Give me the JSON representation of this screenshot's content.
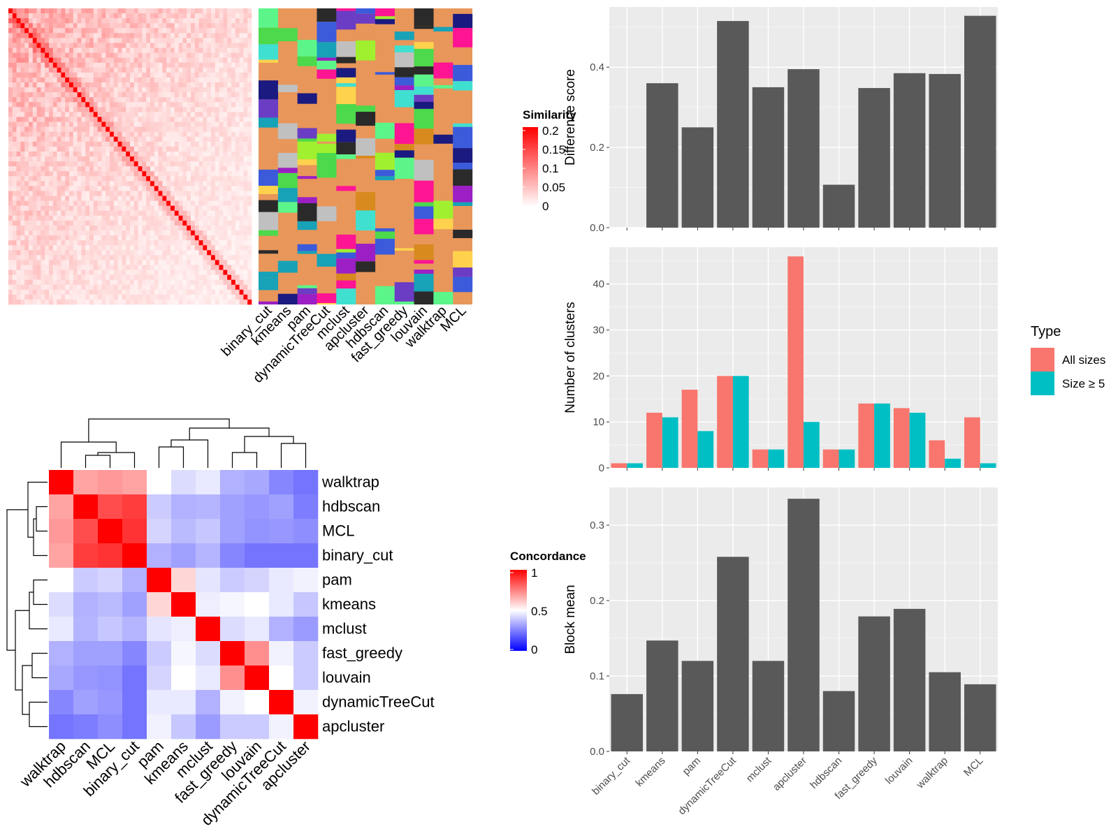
{
  "methods_order": [
    "binary_cut",
    "kmeans",
    "pam",
    "dynamicTreeCut",
    "mclust",
    "apcluster",
    "hdbscan",
    "fast_greedy",
    "louvain",
    "walktrap",
    "MCL"
  ],
  "colors": {
    "bar_fill": "#595959",
    "panel_bg": "#ebebeb",
    "grid": "#ffffff",
    "all_sizes": "#f8766d",
    "size_ge5": "#00bfc4",
    "heat_high": "#ff0000",
    "heat_mid": "#ffffff",
    "heat_low": "#0000ff",
    "annotation_base": "#e8965a"
  },
  "legends": {
    "similarity": {
      "title": "Similarity",
      "ticks": [
        "0.2",
        "0.15",
        "0.1",
        "0.05",
        "0"
      ]
    },
    "concordance": {
      "title": "Concordance",
      "ticks": [
        "1",
        "0.5",
        "0"
      ]
    },
    "type": {
      "title": "Type",
      "items": [
        "All sizes",
        "Size ≥ 5"
      ]
    }
  },
  "chart_data": [
    {
      "type": "heatmap",
      "name": "similarity-matrix-with-cluster-annotations",
      "annotation_columns": [
        "binary_cut",
        "kmeans",
        "pam",
        "dynamicTreeCut",
        "mclust",
        "apcluster",
        "hdbscan",
        "fast_greedy",
        "louvain",
        "walktrap",
        "MCL"
      ],
      "legend_title": "Similarity",
      "range": [
        0,
        0.2
      ]
    },
    {
      "type": "heatmap",
      "name": "concordance",
      "rows": [
        "walktrap",
        "hdbscan",
        "MCL",
        "binary_cut",
        "pam",
        "kmeans",
        "mclust",
        "fast_greedy",
        "louvain",
        "dynamicTreeCut",
        "apcluster"
      ],
      "columns": [
        "walktrap",
        "hdbscan",
        "MCL",
        "binary_cut",
        "pam",
        "kmeans",
        "mclust",
        "fast_greedy",
        "louvain",
        "dynamicTreeCut",
        "apcluster"
      ],
      "values": [
        [
          1.0,
          0.68,
          0.7,
          0.68,
          0.5,
          0.42,
          0.45,
          0.32,
          0.3,
          0.22,
          0.18
        ],
        [
          0.68,
          1.0,
          0.85,
          0.88,
          0.38,
          0.32,
          0.33,
          0.28,
          0.26,
          0.28,
          0.2
        ],
        [
          0.7,
          0.85,
          1.0,
          0.9,
          0.4,
          0.34,
          0.37,
          0.28,
          0.25,
          0.26,
          0.24
        ],
        [
          0.68,
          0.88,
          0.9,
          1.0,
          0.32,
          0.28,
          0.33,
          0.22,
          0.18,
          0.18,
          0.18
        ],
        [
          0.5,
          0.38,
          0.4,
          0.32,
          1.0,
          0.58,
          0.44,
          0.38,
          0.4,
          0.45,
          0.47
        ],
        [
          0.42,
          0.32,
          0.34,
          0.28,
          0.58,
          1.0,
          0.46,
          0.48,
          0.5,
          0.45,
          0.37
        ],
        [
          0.45,
          0.33,
          0.37,
          0.33,
          0.44,
          0.46,
          1.0,
          0.42,
          0.45,
          0.32,
          0.27
        ],
        [
          0.32,
          0.28,
          0.28,
          0.22,
          0.38,
          0.48,
          0.42,
          1.0,
          0.72,
          0.47,
          0.38
        ],
        [
          0.3,
          0.26,
          0.25,
          0.18,
          0.4,
          0.5,
          0.45,
          0.72,
          1.0,
          0.5,
          0.38
        ],
        [
          0.22,
          0.28,
          0.26,
          0.18,
          0.45,
          0.45,
          0.32,
          0.47,
          0.5,
          1.0,
          0.47
        ],
        [
          0.18,
          0.2,
          0.24,
          0.18,
          0.47,
          0.37,
          0.27,
          0.38,
          0.38,
          0.47,
          1.0
        ]
      ],
      "legend_title": "Concordance",
      "range": [
        0,
        1
      ]
    },
    {
      "type": "bar",
      "categories": [
        "binary_cut",
        "kmeans",
        "pam",
        "dynamicTreeCut",
        "mclust",
        "apcluster",
        "hdbscan",
        "fast_greedy",
        "louvain",
        "walktrap",
        "MCL"
      ],
      "values": [
        0.0,
        0.36,
        0.25,
        0.515,
        0.35,
        0.395,
        0.107,
        0.348,
        0.385,
        0.383,
        0.528
      ],
      "ylabel": "Difference score",
      "ylim": [
        0,
        0.55
      ],
      "yticks": [
        "0.0",
        "0.2",
        "0.4"
      ],
      "grid": true
    },
    {
      "type": "bar",
      "categories": [
        "binary_cut",
        "kmeans",
        "pam",
        "dynamicTreeCut",
        "mclust",
        "apcluster",
        "hdbscan",
        "fast_greedy",
        "louvain",
        "walktrap",
        "MCL"
      ],
      "series": [
        {
          "name": "All sizes",
          "values": [
            1,
            12,
            17,
            20,
            4,
            46,
            4,
            14,
            13,
            6,
            11
          ]
        },
        {
          "name": "Size ≥ 5",
          "values": [
            1,
            11,
            8,
            20,
            4,
            10,
            4,
            14,
            12,
            2,
            1
          ]
        }
      ],
      "ylabel": "Number of clusters",
      "ylim": [
        0,
        48
      ],
      "yticks": [
        "0",
        "10",
        "20",
        "30",
        "40"
      ],
      "legend_title": "Type",
      "legend_position": "right",
      "grid": true
    },
    {
      "type": "bar",
      "categories": [
        "binary_cut",
        "kmeans",
        "pam",
        "dynamicTreeCut",
        "mclust",
        "apcluster",
        "hdbscan",
        "fast_greedy",
        "louvain",
        "walktrap",
        "MCL"
      ],
      "values": [
        0.076,
        0.147,
        0.12,
        0.258,
        0.12,
        0.335,
        0.08,
        0.179,
        0.189,
        0.105,
        0.089
      ],
      "ylabel": "Block mean",
      "ylim": [
        0,
        0.35
      ],
      "yticks": [
        "0.0",
        "0.1",
        "0.2",
        "0.3"
      ],
      "grid": true
    }
  ]
}
